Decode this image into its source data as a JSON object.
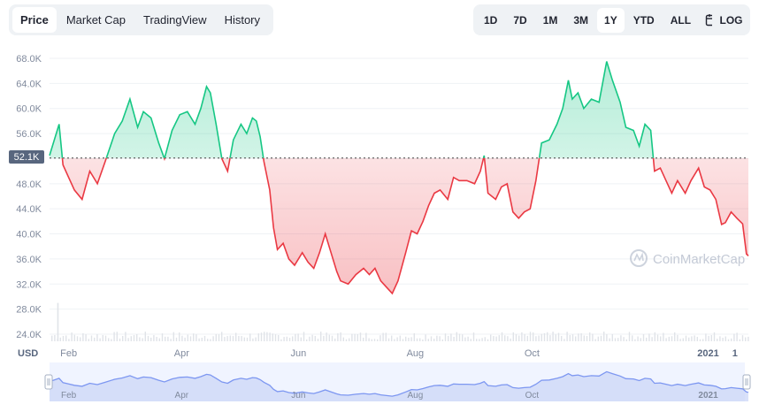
{
  "tabs": [
    {
      "label": "Price",
      "active": true
    },
    {
      "label": "Market Cap",
      "active": false
    },
    {
      "label": "TradingView",
      "active": false
    },
    {
      "label": "History",
      "active": false
    }
  ],
  "ranges": [
    {
      "label": "1D",
      "active": false
    },
    {
      "label": "7D",
      "active": false
    },
    {
      "label": "1M",
      "active": false
    },
    {
      "label": "3M",
      "active": false
    },
    {
      "label": "1Y",
      "active": true
    },
    {
      "label": "YTD",
      "active": false
    },
    {
      "label": "ALL",
      "active": false
    }
  ],
  "calendar_icon": "calendar-icon",
  "log_label": "LOG",
  "watermark": "CoinMarketCap",
  "colors": {
    "up": "#16c784",
    "down": "#ea3943",
    "grid": "#eff2f5",
    "axis_text": "#808a9d",
    "navigator": "#7d97f1"
  },
  "chart_data": {
    "type": "line",
    "currency": "USD",
    "baseline": 52100,
    "baseline_label": "52.1K",
    "ylim": [
      24000,
      68000
    ],
    "yticks": [
      {
        "v": 24000,
        "label": "24.0K"
      },
      {
        "v": 28000,
        "label": "28.0K"
      },
      {
        "v": 32000,
        "label": "32.0K"
      },
      {
        "v": 36000,
        "label": "36.0K"
      },
      {
        "v": 40000,
        "label": "40.0K"
      },
      {
        "v": 44000,
        "label": "44.0K"
      },
      {
        "v": 48000,
        "label": "48.0K"
      },
      {
        "v": 52000,
        "label": "52.0K"
      },
      {
        "v": 56000,
        "label": "56.0K"
      },
      {
        "v": 60000,
        "label": "60.0K"
      },
      {
        "v": 64000,
        "label": "64.0K"
      },
      {
        "v": 68000,
        "label": "68.0K"
      }
    ],
    "xlim": [
      "2021-01-22",
      "2022-01-22"
    ],
    "xticks": [
      {
        "date": "2021-02-01",
        "label": "Feb"
      },
      {
        "date": "2021-04-01",
        "label": "Apr"
      },
      {
        "date": "2021-06-01",
        "label": "Jun"
      },
      {
        "date": "2021-08-01",
        "label": "Aug"
      },
      {
        "date": "2021-10-01",
        "label": "Oct"
      },
      {
        "date": "2022-01-01",
        "label": "2021"
      },
      {
        "date": "2022-01-15",
        "label": "1"
      }
    ],
    "series": [
      {
        "points": [
          [
            "2021-01-22",
            52500
          ],
          [
            "2021-01-25",
            55500
          ],
          [
            "2021-01-27",
            57500
          ],
          [
            "2021-01-29",
            51000
          ],
          [
            "2021-02-01",
            49000
          ],
          [
            "2021-02-04",
            47000
          ],
          [
            "2021-02-08",
            45500
          ],
          [
            "2021-02-12",
            50000
          ],
          [
            "2021-02-16",
            48000
          ],
          [
            "2021-02-20",
            51500
          ],
          [
            "2021-02-25",
            56000
          ],
          [
            "2021-03-01",
            58000
          ],
          [
            "2021-03-05",
            61500
          ],
          [
            "2021-03-09",
            57000
          ],
          [
            "2021-03-12",
            59500
          ],
          [
            "2021-03-16",
            58500
          ],
          [
            "2021-03-20",
            54500
          ],
          [
            "2021-03-23",
            52000
          ],
          [
            "2021-03-27",
            56500
          ],
          [
            "2021-03-31",
            59000
          ],
          [
            "2021-04-04",
            59500
          ],
          [
            "2021-04-08",
            57500
          ],
          [
            "2021-04-11",
            60000
          ],
          [
            "2021-04-14",
            63500
          ],
          [
            "2021-04-16",
            62500
          ],
          [
            "2021-04-19",
            57500
          ],
          [
            "2021-04-22",
            52000
          ],
          [
            "2021-04-25",
            50000
          ],
          [
            "2021-04-28",
            55000
          ],
          [
            "2021-05-02",
            57500
          ],
          [
            "2021-05-05",
            56000
          ],
          [
            "2021-05-08",
            58500
          ],
          [
            "2021-05-10",
            58000
          ],
          [
            "2021-05-12",
            55500
          ],
          [
            "2021-05-14",
            51500
          ],
          [
            "2021-05-17",
            47000
          ],
          [
            "2021-05-19",
            41000
          ],
          [
            "2021-05-21",
            37500
          ],
          [
            "2021-05-24",
            38500
          ],
          [
            "2021-05-27",
            36000
          ],
          [
            "2021-05-30",
            35000
          ],
          [
            "2021-06-03",
            37000
          ],
          [
            "2021-06-06",
            35500
          ],
          [
            "2021-06-09",
            34500
          ],
          [
            "2021-06-12",
            37000
          ],
          [
            "2021-06-15",
            40000
          ],
          [
            "2021-06-18",
            37000
          ],
          [
            "2021-06-21",
            34000
          ],
          [
            "2021-06-23",
            32500
          ],
          [
            "2021-06-27",
            32000
          ],
          [
            "2021-07-01",
            33500
          ],
          [
            "2021-07-05",
            34500
          ],
          [
            "2021-07-08",
            33500
          ],
          [
            "2021-07-11",
            34500
          ],
          [
            "2021-07-14",
            32500
          ],
          [
            "2021-07-17",
            31500
          ],
          [
            "2021-07-20",
            30500
          ],
          [
            "2021-07-23",
            32500
          ],
          [
            "2021-07-27",
            37000
          ],
          [
            "2021-07-30",
            40500
          ],
          [
            "2021-08-02",
            40000
          ],
          [
            "2021-08-05",
            42000
          ],
          [
            "2021-08-08",
            44500
          ],
          [
            "2021-08-11",
            46500
          ],
          [
            "2021-08-14",
            47000
          ],
          [
            "2021-08-18",
            45500
          ],
          [
            "2021-08-21",
            49000
          ],
          [
            "2021-08-24",
            48500
          ],
          [
            "2021-08-28",
            48500
          ],
          [
            "2021-09-01",
            48000
          ],
          [
            "2021-09-04",
            50000
          ],
          [
            "2021-09-06",
            52500
          ],
          [
            "2021-09-08",
            46500
          ],
          [
            "2021-09-12",
            45500
          ],
          [
            "2021-09-15",
            47500
          ],
          [
            "2021-09-18",
            48000
          ],
          [
            "2021-09-21",
            43500
          ],
          [
            "2021-09-24",
            42500
          ],
          [
            "2021-09-27",
            43500
          ],
          [
            "2021-09-30",
            44000
          ],
          [
            "2021-10-03",
            48500
          ],
          [
            "2021-10-06",
            54500
          ],
          [
            "2021-10-10",
            55000
          ],
          [
            "2021-10-14",
            57500
          ],
          [
            "2021-10-17",
            60000
          ],
          [
            "2021-10-20",
            64500
          ],
          [
            "2021-10-22",
            61500
          ],
          [
            "2021-10-25",
            62500
          ],
          [
            "2021-10-28",
            60000
          ],
          [
            "2021-11-01",
            61500
          ],
          [
            "2021-11-05",
            61000
          ],
          [
            "2021-11-09",
            67500
          ],
          [
            "2021-11-12",
            64500
          ],
          [
            "2021-11-16",
            61000
          ],
          [
            "2021-11-19",
            57000
          ],
          [
            "2021-11-23",
            56500
          ],
          [
            "2021-11-26",
            54000
          ],
          [
            "2021-11-29",
            57500
          ],
          [
            "2021-12-02",
            56500
          ],
          [
            "2021-12-04",
            50000
          ],
          [
            "2021-12-07",
            50500
          ],
          [
            "2021-12-10",
            48500
          ],
          [
            "2021-12-13",
            46500
          ],
          [
            "2021-12-16",
            48500
          ],
          [
            "2021-12-20",
            46500
          ],
          [
            "2021-12-23",
            48500
          ],
          [
            "2021-12-27",
            50500
          ],
          [
            "2021-12-30",
            47500
          ],
          [
            "2022-01-02",
            47000
          ],
          [
            "2022-01-05",
            45500
          ],
          [
            "2022-01-08",
            41500
          ],
          [
            "2022-01-10",
            41800
          ],
          [
            "2022-01-13",
            43500
          ],
          [
            "2022-01-16",
            42500
          ],
          [
            "2022-01-19",
            41600
          ],
          [
            "2022-01-21",
            36800
          ],
          [
            "2022-01-22",
            36500
          ]
        ]
      }
    ],
    "volume_spikes": [
      [
        "2021-01-26",
        6.2
      ]
    ]
  }
}
